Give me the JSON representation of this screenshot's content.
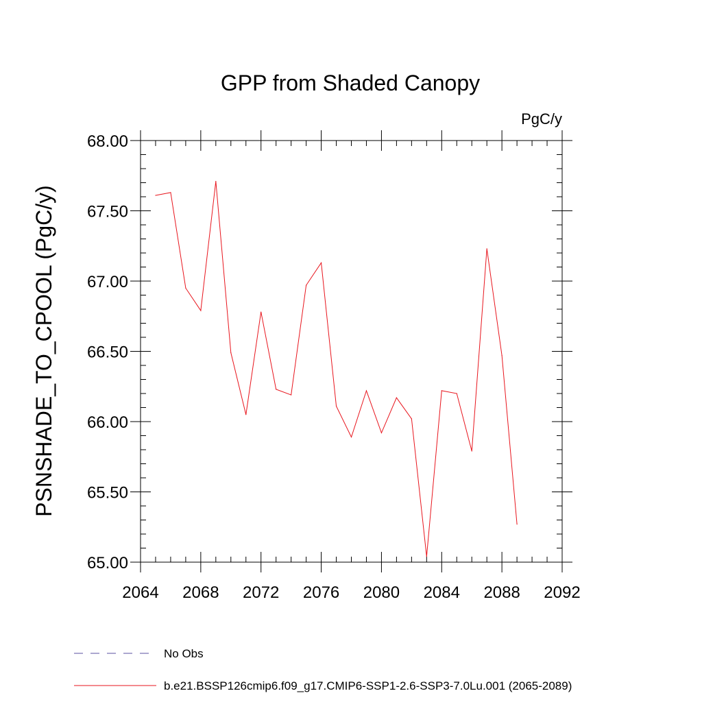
{
  "chart_data": {
    "type": "line",
    "title": "GPP from Shaded Canopy",
    "units_label": "PgC/y",
    "xlabel": "",
    "ylabel": "PSNSHADE_TO_CPOOL  (PgC/y)",
    "xlim": [
      2064,
      2092
    ],
    "ylim": [
      65.0,
      68.0
    ],
    "x_ticks": [
      "2064",
      "2068",
      "2072",
      "2076",
      "2080",
      "2084",
      "2088",
      "2092"
    ],
    "y_ticks": [
      "65.00",
      "65.50",
      "66.00",
      "66.50",
      "67.00",
      "67.50",
      "68.00"
    ],
    "grid": false,
    "legend_position": "bottom",
    "legend": [
      {
        "label": "No Obs",
        "color": "#5a4fa0",
        "dash": "dashed"
      },
      {
        "label": "b.e21.BSSP126cmip6.f09_g17.CMIP6-SSP1-2.6-SSP3-7.0Lu.001 (2065-2089)",
        "color": "#e8141c",
        "dash": "solid"
      }
    ],
    "series": [
      {
        "name": "b.e21.BSSP126cmip6.f09_g17.CMIP6-SSP1-2.6-SSP3-7.0Lu.001 (2065-2089)",
        "color": "#e8141c",
        "x": [
          2065,
          2066,
          2067,
          2068,
          2069,
          2070,
          2071,
          2072,
          2073,
          2074,
          2075,
          2076,
          2077,
          2078,
          2079,
          2080,
          2081,
          2082,
          2083,
          2084,
          2085,
          2086,
          2087,
          2088,
          2089
        ],
        "y": [
          67.61,
          67.63,
          66.95,
          66.79,
          67.71,
          66.49,
          66.05,
          66.78,
          66.23,
          66.19,
          66.97,
          67.13,
          66.11,
          65.89,
          66.22,
          65.92,
          66.17,
          66.02,
          65.04,
          66.22,
          66.2,
          65.79,
          67.23,
          66.47,
          65.27
        ]
      }
    ]
  }
}
